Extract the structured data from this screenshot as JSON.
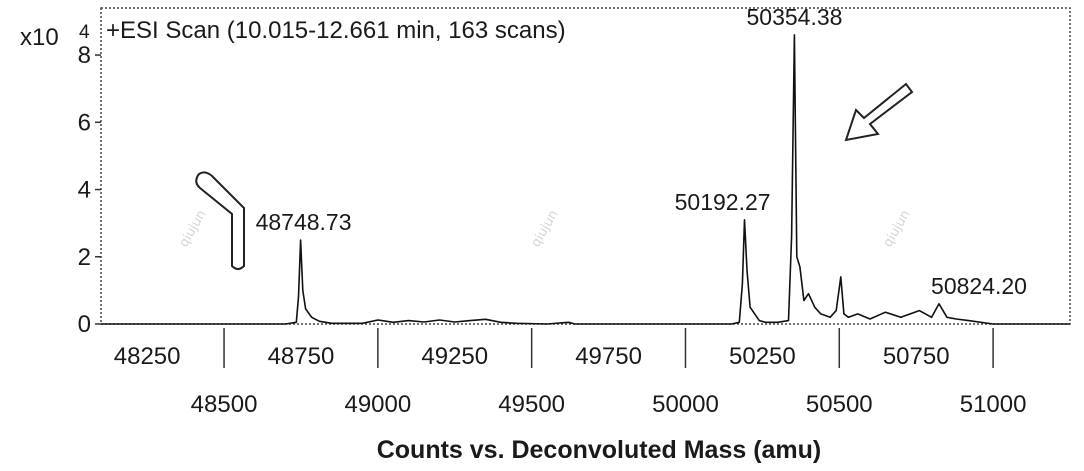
{
  "chart_data": {
    "type": "line",
    "title": "+ESI Scan (10.015-12.661 min, 163 scans)",
    "xlabel": "Counts vs. Deconvoluted Mass (amu)",
    "ylabel": "",
    "y_multiplier": "x10",
    "y_multiplier_exponent": "4",
    "xlim": [
      48100,
      51250
    ],
    "ylim": [
      0,
      9.4
    ],
    "y_ticks": [
      "0",
      "2",
      "4",
      "6",
      "8"
    ],
    "x_ticks_upper": [
      "48250",
      "48750",
      "49250",
      "49750",
      "50250",
      "50750"
    ],
    "x_ticks_lower": [
      "48500",
      "49000",
      "49500",
      "50000",
      "50500",
      "51000"
    ],
    "grid": false,
    "legend": "none",
    "peak_labels": [
      {
        "label": "48748.73",
        "x": 48748.73,
        "y": 2.5
      },
      {
        "label": "50192.27",
        "x": 50192.27,
        "y": 3.1
      },
      {
        "label": "50354.38",
        "x": 50354.38,
        "y": 8.6
      },
      {
        "label": "50824.20",
        "x": 50824.2,
        "y": 0.6
      }
    ],
    "series": [
      {
        "x": [
          48100,
          48700,
          48735,
          48742,
          48749,
          48756,
          48765,
          48785,
          48810,
          48850,
          48950,
          49000,
          49050,
          49100,
          49150,
          49200,
          49250,
          49300,
          49350,
          49400,
          49450,
          49550,
          49620,
          49640,
          49700,
          50150,
          50175,
          50185,
          50192,
          50200,
          50210,
          50225,
          50240,
          50260,
          50300,
          50335,
          50345,
          50354,
          50362,
          50372,
          50385,
          50400,
          50420,
          50440,
          50470,
          50490,
          50505,
          50515,
          50530,
          50560,
          50600,
          50650,
          50700,
          50760,
          50800,
          50824,
          50850,
          50880,
          50920,
          51000,
          51250
        ],
        "values": [
          0,
          0,
          0.05,
          0.8,
          2.5,
          1.0,
          0.45,
          0.2,
          0.08,
          0.02,
          0.02,
          0.12,
          0.05,
          0.1,
          0.06,
          0.12,
          0.06,
          0.1,
          0.14,
          0.05,
          0.02,
          0.0,
          0.05,
          0.0,
          0.0,
          0.0,
          0.05,
          1.2,
          3.1,
          1.6,
          0.5,
          0.3,
          0.1,
          0.05,
          0.05,
          0.1,
          2.6,
          8.6,
          2.0,
          1.7,
          0.7,
          0.9,
          0.5,
          0.3,
          0.2,
          0.4,
          1.4,
          0.3,
          0.2,
          0.3,
          0.15,
          0.35,
          0.2,
          0.4,
          0.2,
          0.6,
          0.2,
          0.15,
          0.1,
          0.0,
          0.0
        ]
      }
    ]
  },
  "watermarks": [
    "qiujun",
    "qiujun",
    "qiujun"
  ]
}
